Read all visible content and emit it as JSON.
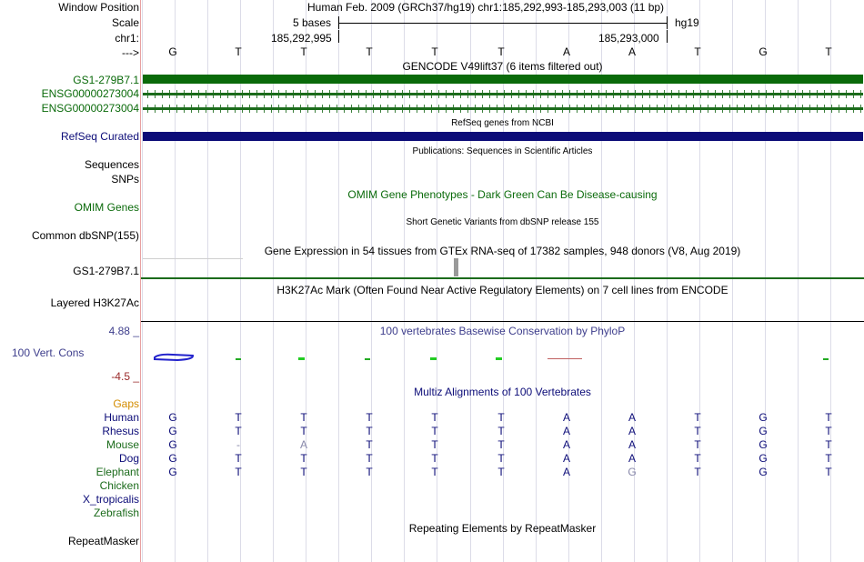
{
  "header": {
    "window_position_label": "Window Position",
    "assembly_range": "Human Feb. 2009 (GRCh37/hg19)   chr1:185,292,993-185,293,003 (11 bp)",
    "scale_label": "Scale",
    "scale_value": "5 bases",
    "scale_db": "hg19",
    "chr_label": "chr1:",
    "pos_left": "185,292,995",
    "pos_right": "185,293,000",
    "arrow_label": "--->",
    "bases": [
      "G",
      "T",
      "T",
      "T",
      "T",
      "T",
      "A",
      "A",
      "T",
      "G",
      "T"
    ]
  },
  "tracks": {
    "gencode_title": "GENCODE V49lift37 (6 items filtered out)",
    "gencode_items": [
      "GS1-279B7.1",
      "ENSG00000273004",
      "ENSG00000273004"
    ],
    "refseq_title": "RefSeq genes from NCBI",
    "refseq_label": "RefSeq Curated",
    "pubs_title": "Publications: Sequences in Scientific Articles",
    "sequences_label": "Sequences",
    "snps_label": "SNPs",
    "omim_title": "OMIM Gene Phenotypes - Dark Green Can Be Disease-causing",
    "omim_label": "OMIM Genes",
    "dbsnp_title": "Short Genetic Variants from dbSNP release 155",
    "dbsnp_label": "Common dbSNP(155)",
    "gtex_title": "Gene Expression in 54 tissues from GTEx RNA-seq of 17382 samples, 948 donors (V8, Aug 2019)",
    "gtex_label": "GS1-279B7.1",
    "h3k_title": "H3K27Ac Mark (Often Found Near Active Regulatory Elements) on 7 cell lines from ENCODE",
    "h3k_label": "Layered H3K27Ac",
    "phylop_title": "100 vertebrates Basewise Conservation by PhyloP",
    "phylop_max": "4.88 _",
    "phylop_label": "100 Vert. Cons",
    "phylop_min": "-4.5 _",
    "multiz_title": "Multiz Alignments of 100 Vertebrates",
    "gaps_label": "Gaps",
    "species": [
      {
        "name": "Human",
        "bases": [
          "G",
          "T",
          "T",
          "T",
          "T",
          "T",
          "A",
          "A",
          "T",
          "G",
          "T"
        ]
      },
      {
        "name": "Rhesus",
        "bases": [
          "G",
          "T",
          "T",
          "T",
          "T",
          "T",
          "A",
          "A",
          "T",
          "G",
          "T"
        ]
      },
      {
        "name": "Mouse",
        "bases": [
          "G",
          "-",
          "A",
          "T",
          "T",
          "T",
          "A",
          "A",
          "T",
          "G",
          "T"
        ]
      },
      {
        "name": "Dog",
        "bases": [
          "G",
          "T",
          "T",
          "T",
          "T",
          "T",
          "A",
          "A",
          "T",
          "G",
          "T"
        ]
      },
      {
        "name": "Elephant",
        "bases": [
          "G",
          "T",
          "T",
          "T",
          "T",
          "T",
          "A",
          "G",
          "T",
          "G",
          "T"
        ]
      },
      {
        "name": "Chicken",
        "bases": []
      },
      {
        "name": "X_tropicalis",
        "bases": []
      },
      {
        "name": "Zebrafish",
        "bases": []
      }
    ],
    "rmsk_title": "Repeating Elements by RepeatMasker",
    "rmsk_label": "RepeatMasker"
  },
  "colors": {
    "gencode": "#0a6a0a",
    "refseq": "#0c0c78",
    "phylop_label": "#3e3e8c",
    "phylop_min": "#9a2a2a",
    "gaps": "#d38c00",
    "species_blue": "#0c0c78",
    "species_green": "#1b6b1b"
  }
}
